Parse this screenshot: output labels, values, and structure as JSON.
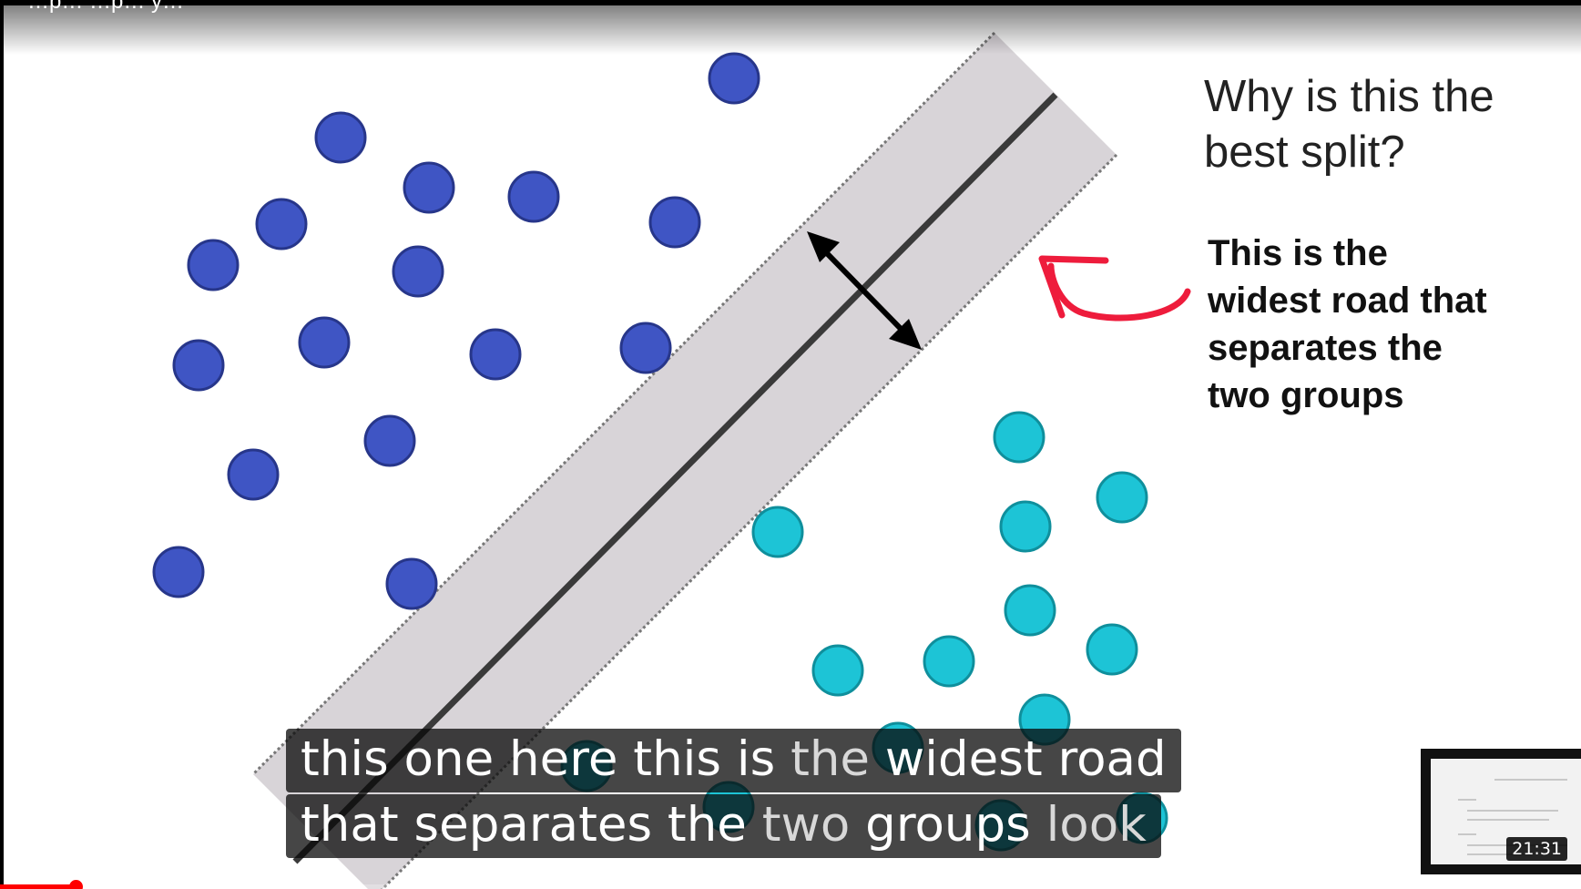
{
  "video": {
    "title_partial": "…p…  …p…  y…",
    "duration": "21:31",
    "progress_fraction": 0.048
  },
  "slide": {
    "question": [
      "Why is this the",
      "best split?"
    ],
    "answer": [
      "This is the",
      "widest road that",
      "separates the",
      "two groups"
    ],
    "colors": {
      "group_a_fill": "#3f55c4",
      "group_a_stroke": "#27368a",
      "group_b_fill": "#1dc4d6",
      "group_b_stroke": "#0f8f9c",
      "road_fill": "#d8d4d8",
      "arrow_red": "#ee1c3c"
    }
  },
  "captions": {
    "line1_a": "this one here this is ",
    "line1_b": "the",
    "line1_c": " widest road",
    "line2_a": "that separates the ",
    "line2_b": "two",
    "line2_c": " groups ",
    "line2_d": "look"
  },
  "preview": {
    "time": "21:31"
  }
}
